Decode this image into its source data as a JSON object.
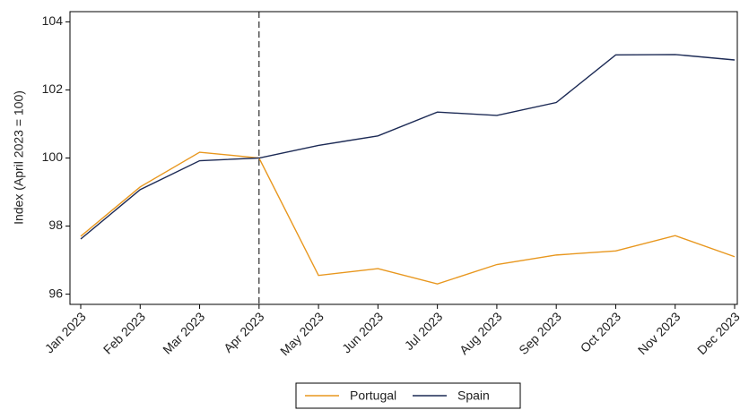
{
  "chart_data": {
    "type": "line",
    "ylabel": "Index (April 2023 = 100)",
    "categories": [
      "Jan 2023",
      "Feb 2023",
      "Mar 2023",
      "Apr 2023",
      "May 2023",
      "Jun 2023",
      "Jul 2023",
      "Aug 2023",
      "Sep 2023",
      "Oct 2023",
      "Nov 2023",
      "Dec 2023"
    ],
    "series": [
      {
        "name": "Portugal",
        "color": "#e8971e",
        "values": [
          97.7,
          99.15,
          100.17,
          100,
          96.55,
          96.75,
          96.3,
          96.87,
          97.15,
          97.27,
          97.72,
          97.1
        ]
      },
      {
        "name": "Spain",
        "color": "#1c2a55",
        "values": [
          97.62,
          99.07,
          99.92,
          100,
          100.37,
          100.65,
          101.35,
          101.25,
          101.63,
          103.03,
          103.04,
          102.88
        ]
      }
    ],
    "vline": "Apr 2023",
    "ylim": [
      95.7,
      104.3
    ],
    "yticks": [
      96,
      98,
      100,
      102,
      104
    ],
    "legend": "bottom"
  }
}
